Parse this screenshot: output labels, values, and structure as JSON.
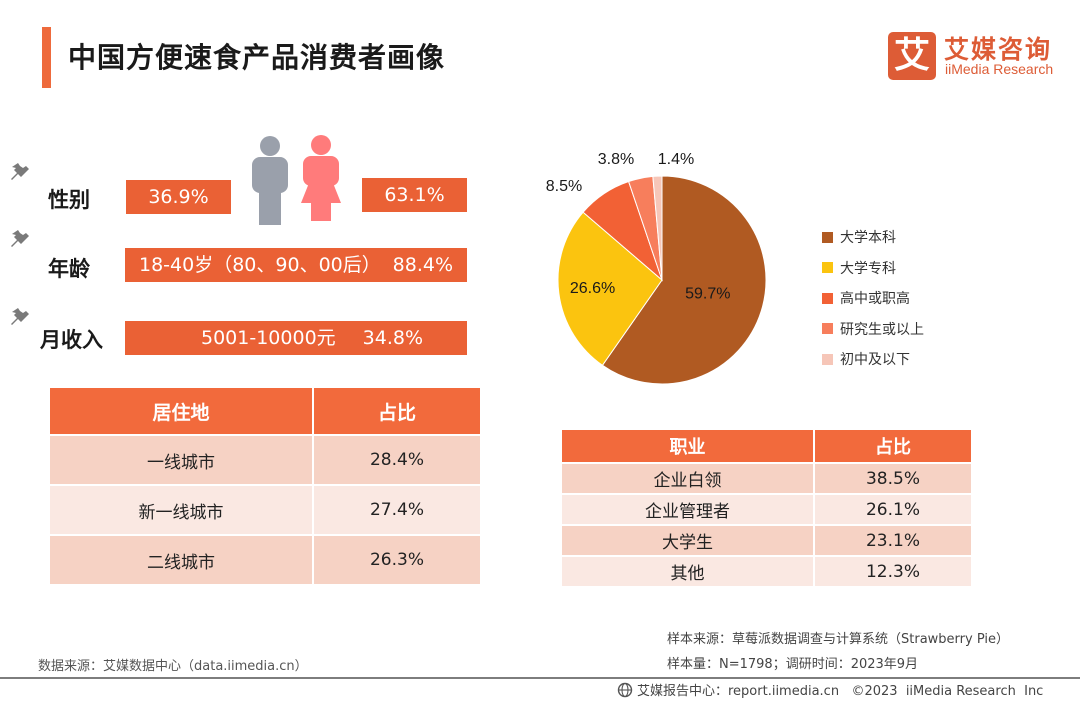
{
  "header": {
    "title": "中国方便速食产品消费者画像",
    "logo_mark": "艾",
    "logo_cn": "艾媒咨询",
    "logo_en": "iiMedia Research"
  },
  "profile": {
    "gender": {
      "label": "性别",
      "male_pct": "36.9%",
      "female_pct": "63.1%"
    },
    "age": {
      "label": "年龄",
      "range": "18-40岁（80、90、00后）",
      "pct": "88.4%"
    },
    "income": {
      "label": "月收入",
      "range": "5001-10000元",
      "pct": "34.8%"
    }
  },
  "colors": {
    "accent": "#ea6135",
    "male_icon": "#9aa0ab",
    "female_icon": "#ff7b7b"
  },
  "residence_table": {
    "headers": [
      "居住地",
      "占比"
    ],
    "rows": [
      [
        "一线城市",
        "28.4%"
      ],
      [
        "新一线城市",
        "27.4%"
      ],
      [
        "二线城市",
        "26.3%"
      ]
    ]
  },
  "occupation_table": {
    "headers": [
      "职业",
      "占比"
    ],
    "rows": [
      [
        "企业白领",
        "38.5%"
      ],
      [
        "企业管理者",
        "26.1%"
      ],
      [
        "大学生",
        "23.1%"
      ],
      [
        "其他",
        "12.3%"
      ]
    ]
  },
  "chart_data": {
    "type": "pie",
    "title": "",
    "legend_position": "right",
    "categories": [
      "大学本科",
      "大学专科",
      "高中或职高",
      "研究生或以上",
      "初中及以下"
    ],
    "values": [
      59.7,
      26.6,
      8.5,
      3.8,
      1.4
    ],
    "labels": [
      "59.7%",
      "26.6%",
      "8.5%",
      "3.8%",
      "1.4%"
    ],
    "colors": [
      "#b05a22",
      "#fbc40f",
      "#f26135",
      "#f77e5c",
      "#f6c6b8"
    ],
    "start_angle_deg": 0,
    "direction": "clockwise"
  },
  "footer": {
    "data_source": "数据来源：艾媒数据中心（data.iimedia.cn）",
    "sample_source": "样本来源：草莓派数据调查与计算系统（Strawberry Pie）",
    "sample_size": "样本量：N=1798；调研时间：2023年9月",
    "copyright": "艾媒报告中心：report.iimedia.cn   ©2023  iiMedia Research  Inc"
  }
}
